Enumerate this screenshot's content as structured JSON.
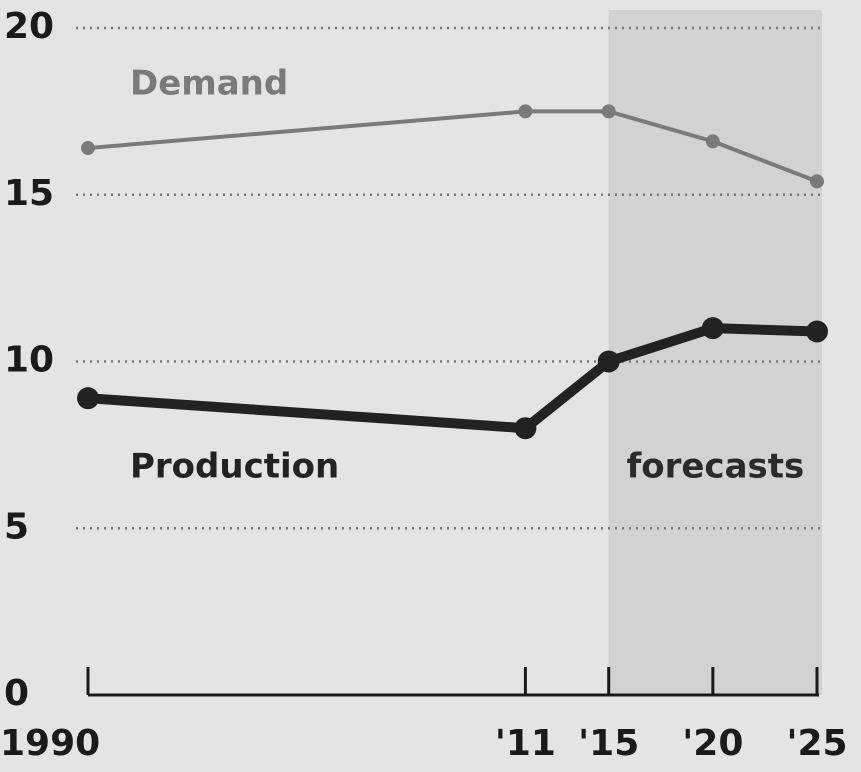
{
  "chart_data": {
    "type": "line",
    "x": [
      1990,
      2011,
      2015,
      2020,
      2025
    ],
    "series": [
      {
        "name": "Demand",
        "color": "#7a7a7a",
        "values": [
          16.4,
          17.5,
          17.5,
          16.6,
          15.4
        ]
      },
      {
        "name": "Production",
        "color": "#222222",
        "values": [
          8.9,
          8.0,
          10.0,
          11.0,
          10.9
        ]
      }
    ],
    "xlim": [
      1990,
      2025
    ],
    "xticks": [
      1990,
      {
        "value": 2011,
        "label": "'11"
      },
      {
        "value": 2015,
        "label": "'15"
      },
      {
        "value": 2020,
        "label": "'20"
      },
      {
        "value": 2025,
        "label": "'25"
      }
    ],
    "ylim": [
      0,
      20
    ],
    "yticks": [
      0,
      5,
      10,
      15,
      20
    ],
    "grid": true,
    "shade": {
      "xlim": [
        2015,
        2025
      ],
      "label": "forecasts",
      "color": "#d2d2d2"
    }
  }
}
